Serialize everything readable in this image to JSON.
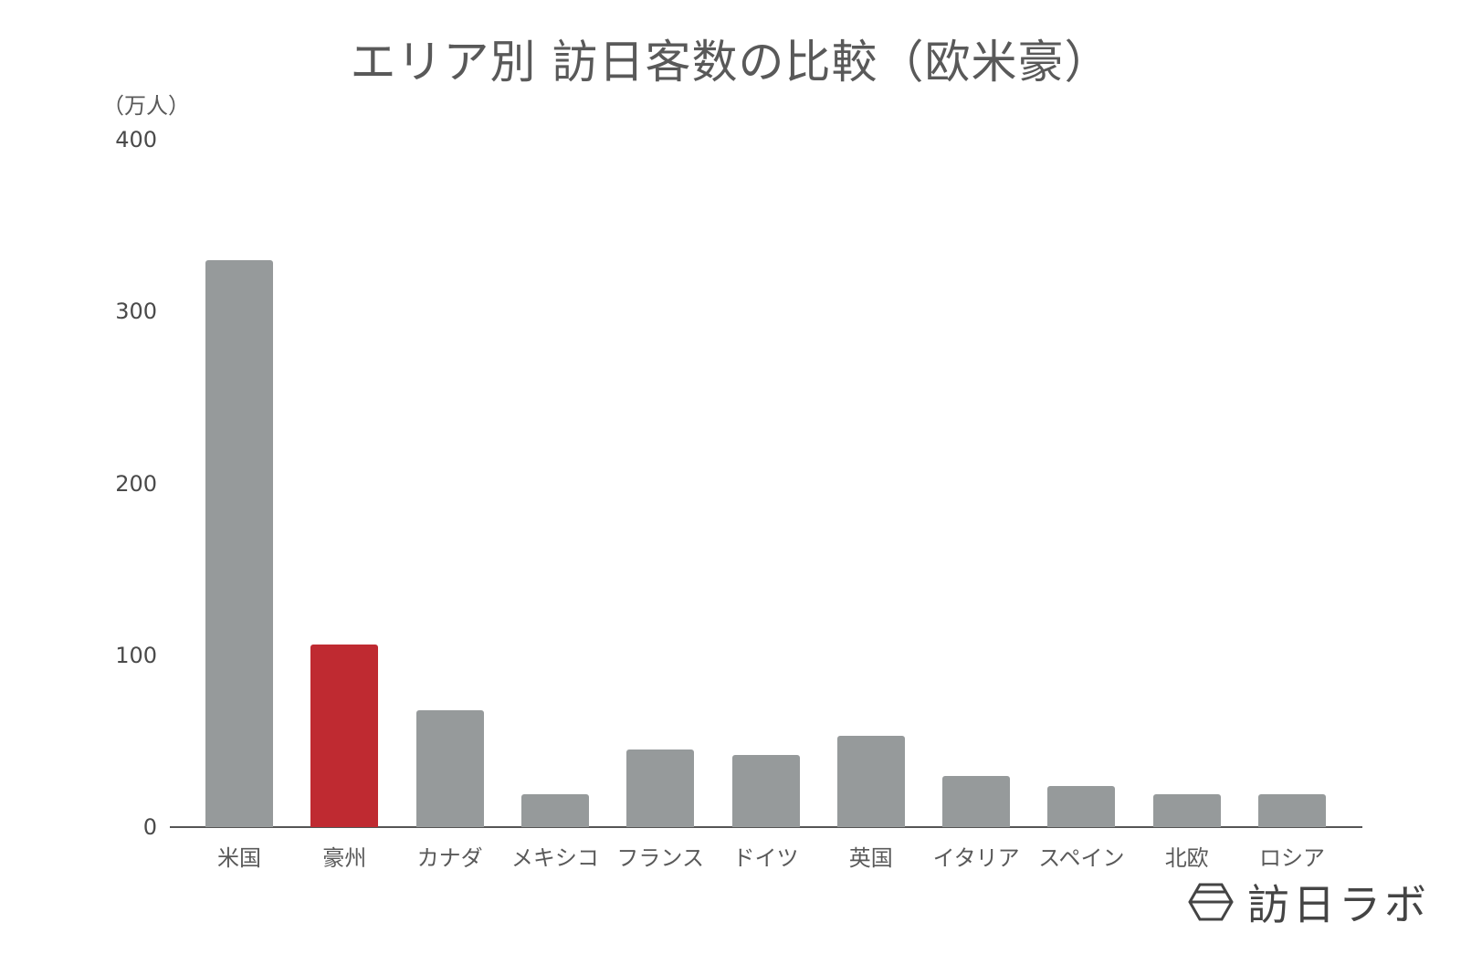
{
  "chart_data": {
    "type": "bar",
    "title": "エリア別 訪日客数の比較（欧米豪）",
    "xlabel": "",
    "ylabel": "（万人）",
    "ylim": [
      0,
      400
    ],
    "yticks": [
      0,
      100,
      200,
      300,
      400
    ],
    "grid": false,
    "legend": null,
    "categories": [
      "米国",
      "豪州",
      "カナダ",
      "メキシコ",
      "フランス",
      "ドイツ",
      "英国",
      "イタリア",
      "スペイン",
      "北欧",
      "ロシア"
    ],
    "values": [
      330,
      106,
      68,
      19,
      45,
      42,
      53,
      30,
      24,
      19,
      19
    ],
    "colors": [
      "#969a9b",
      "#bf2a31",
      "#969a9b",
      "#969a9b",
      "#969a9b",
      "#969a9b",
      "#969a9b",
      "#969a9b",
      "#969a9b",
      "#969a9b",
      "#969a9b"
    ],
    "highlight": "豪州"
  },
  "logo": {
    "text": "訪日ラボ",
    "icon": "hexagon-logo-icon"
  }
}
